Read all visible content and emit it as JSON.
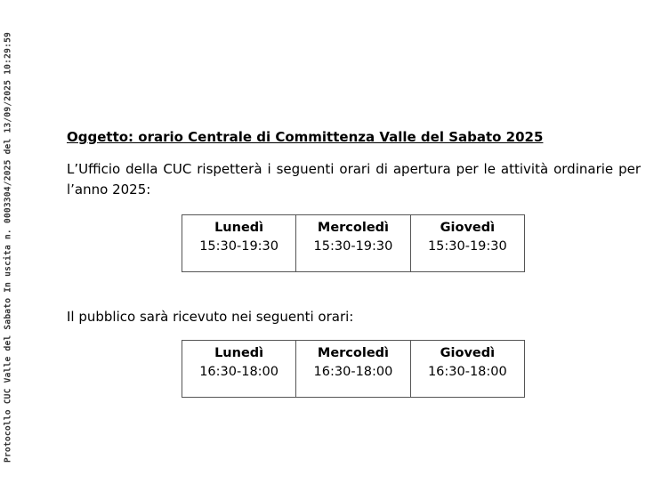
{
  "stamp": "Protocollo CUC Valle del Sabato In uscita n. 0003304/2025 del 13/09/2025 10:29:59",
  "subject": "Oggetto: orario Centrale di Committenza Valle del Sabato 2025",
  "intro": "L’Ufficio della CUC rispetterà i seguenti orari di apertura per le attività ordinarie per l’anno 2025:",
  "opening_hours": [
    {
      "day": "Lunedì",
      "time": "15:30-19:30"
    },
    {
      "day": "Mercoledì",
      "time": "15:30-19:30"
    },
    {
      "day": "Giovedì",
      "time": "15:30-19:30"
    }
  ],
  "public_intro": "Il pubblico sarà ricevuto nei seguenti orari:",
  "public_hours": [
    {
      "day": "Lunedì",
      "time": "16:30-18:00"
    },
    {
      "day": "Mercoledì",
      "time": "16:30-18:00"
    },
    {
      "day": "Giovedì",
      "time": "16:30-18:00"
    }
  ]
}
